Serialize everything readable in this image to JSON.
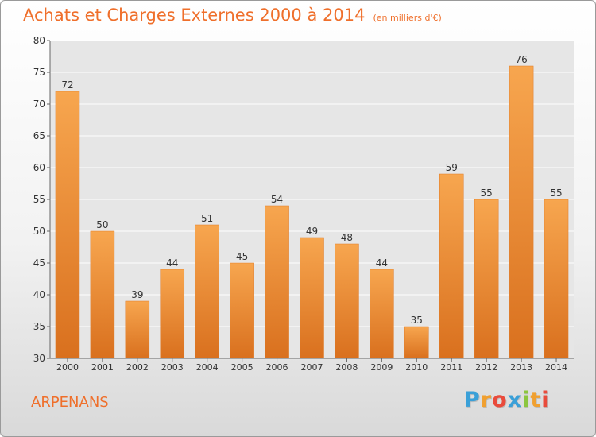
{
  "title": "Achats et Charges Externes 2000 à 2014",
  "subtitle": "(en milliers d'€)",
  "commune": "ARPENANS",
  "logo": {
    "letters": [
      "P",
      "r",
      "o",
      "x",
      "i",
      "t",
      "i"
    ],
    "colors": [
      "#3aa0d8",
      "#f0a030",
      "#e94b3c",
      "#3aa0d8",
      "#8cc63f",
      "#f0a030",
      "#e94b3c"
    ]
  },
  "chart_data": {
    "type": "bar",
    "categories": [
      "2000",
      "2001",
      "2002",
      "2003",
      "2004",
      "2005",
      "2006",
      "2007",
      "2008",
      "2009",
      "2010",
      "2011",
      "2012",
      "2013",
      "2014"
    ],
    "values": [
      72,
      50,
      39,
      44,
      51,
      45,
      54,
      49,
      48,
      44,
      35,
      59,
      55,
      76,
      55
    ],
    "ylim": [
      30,
      80
    ],
    "yticks": [
      30,
      35,
      40,
      45,
      50,
      55,
      60,
      65,
      70,
      75,
      80
    ],
    "grid": true,
    "bar_color_top": "#f7a64f",
    "bar_color_bottom": "#d9701e"
  }
}
